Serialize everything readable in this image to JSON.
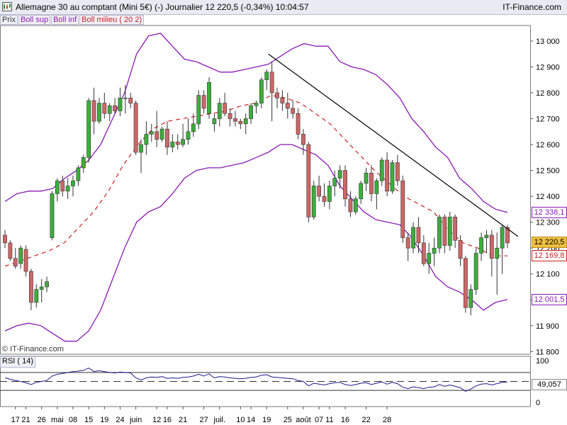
{
  "header": {
    "title": "Allemagne 30 au comptant (Mini 5€) (-)   Journalier   12 220,5 (-0,34%)   10:04:57",
    "brand": "IT-Finance.com"
  },
  "legend": {
    "items": [
      {
        "label": "Prix",
        "color": "#333333"
      },
      {
        "label": "Boll sup",
        "color": "#8a1ab0"
      },
      {
        "label": "Boll inf",
        "color": "#8a1ab0"
      },
      {
        "label": "Boll milieu ( 20 2)",
        "color": "#cc2222"
      }
    ]
  },
  "copyright": "© IT-Finance.com",
  "rsi_label": "RSI ( 14)",
  "price_tags": {
    "boll_sup": "12 338,1",
    "last": "12 220,5",
    "boll_mid": "12 169,8",
    "boll_inf": "12 001,5",
    "rsi": "49,057"
  },
  "colors": {
    "up": "#3cae3c",
    "down": "#cf6666",
    "boll": "#8a1ab0",
    "mid": "#cc2222",
    "trend": "#000000",
    "last_bg": "#f0c040"
  },
  "chart_data": {
    "type": "candlestick",
    "title": "Allemagne 30 au comptant (Mini 5€) (-) Journalier",
    "y_ticks": [
      "13 000",
      "12 900",
      "12 800",
      "12 700",
      "12 600",
      "12 500",
      "12 400",
      "12 300",
      "12 200",
      "12 100",
      "12 000",
      "11 900",
      "11 800"
    ],
    "y_tick_values": [
      13000,
      12900,
      12800,
      12700,
      12600,
      12500,
      12400,
      12300,
      12200,
      12100,
      12000,
      11900,
      11800
    ],
    "ylim": [
      11790,
      13060
    ],
    "x_ticks": [
      "17",
      "21",
      "26",
      "mai",
      "08",
      "15",
      "19",
      "24",
      "juin",
      "12",
      "16",
      "21",
      "27",
      "juil.",
      "10",
      "14",
      "19",
      "25",
      "août",
      "07",
      "11",
      "16",
      "22",
      "28"
    ],
    "x_tick_index": [
      2,
      4,
      7,
      10,
      13,
      16,
      19,
      22,
      25,
      29,
      31,
      34,
      38,
      41,
      45,
      47,
      50,
      54,
      57,
      60,
      62,
      65,
      69,
      73
    ],
    "candles": [
      [
        12250,
        12270,
        12200,
        12220
      ],
      [
        12220,
        12230,
        12150,
        12160
      ],
      [
        12160,
        12200,
        12120,
        12130
      ],
      [
        12140,
        12210,
        12120,
        12200
      ],
      [
        12195,
        12210,
        12090,
        12110
      ],
      [
        12110,
        12120,
        11960,
        11990
      ],
      [
        11990,
        12060,
        11970,
        12040
      ],
      [
        12040,
        12080,
        11990,
        12050
      ],
      [
        12050,
        12090,
        12030,
        12070
      ],
      [
        12240,
        12420,
        12230,
        12410
      ],
      [
        12410,
        12470,
        12380,
        12460
      ],
      [
        12460,
        12480,
        12400,
        12420
      ],
      [
        12420,
        12470,
        12390,
        12440
      ],
      [
        12440,
        12480,
        12400,
        12460
      ],
      [
        12460,
        12520,
        12440,
        12510
      ],
      [
        12510,
        12560,
        12490,
        12550
      ],
      [
        12550,
        12780,
        12530,
        12770
      ],
      [
        12770,
        12820,
        12640,
        12690
      ],
      [
        12690,
        12780,
        12680,
        12760
      ],
      [
        12760,
        12800,
        12700,
        12720
      ],
      [
        12720,
        12760,
        12690,
        12750
      ],
      [
        12750,
        12780,
        12720,
        12730
      ],
      [
        12730,
        12820,
        12710,
        12780
      ],
      [
        12780,
        12830,
        12720,
        12780
      ],
      [
        12780,
        12800,
        12740,
        12760
      ],
      [
        12760,
        12770,
        12560,
        12570
      ],
      [
        12570,
        12620,
        12490,
        12600
      ],
      [
        12600,
        12690,
        12560,
        12640
      ],
      [
        12640,
        12680,
        12610,
        12650
      ],
      [
        12650,
        12730,
        12590,
        12620
      ],
      [
        12620,
        12670,
        12610,
        12660
      ],
      [
        12660,
        12690,
        12560,
        12590
      ],
      [
        12590,
        12640,
        12570,
        12610
      ],
      [
        12610,
        12640,
        12580,
        12600
      ],
      [
        12600,
        12680,
        12590,
        12620
      ],
      [
        12620,
        12700,
        12600,
        12650
      ],
      [
        12650,
        12720,
        12630,
        12680
      ],
      [
        12680,
        12810,
        12660,
        12790
      ],
      [
        12790,
        12810,
        12720,
        12740
      ],
      [
        12720,
        12860,
        12700,
        12840
      ],
      [
        12680,
        12720,
        12650,
        12700
      ],
      [
        12700,
        12780,
        12670,
        12760
      ],
      [
        12760,
        12800,
        12710,
        12720
      ],
      [
        12720,
        12740,
        12670,
        12700
      ],
      [
        12700,
        12730,
        12670,
        12690
      ],
      [
        12690,
        12700,
        12660,
        12680
      ],
      [
        12680,
        12720,
        12640,
        12700
      ],
      [
        12700,
        12760,
        12680,
        12750
      ],
      [
        12750,
        12770,
        12720,
        12760
      ],
      [
        12760,
        12860,
        12740,
        12850
      ],
      [
        12850,
        12890,
        12810,
        12880
      ],
      [
        12880,
        12920,
        12690,
        12800
      ],
      [
        12800,
        12820,
        12740,
        12780
      ],
      [
        12780,
        12810,
        12730,
        12760
      ],
      [
        12760,
        12800,
        12700,
        12740
      ],
      [
        12740,
        12770,
        12700,
        12720
      ],
      [
        12720,
        12740,
        12620,
        12640
      ],
      [
        12640,
        12660,
        12560,
        12600
      ],
      [
        12600,
        12610,
        12300,
        12320
      ],
      [
        12320,
        12460,
        12310,
        12440
      ],
      [
        12440,
        12480,
        12380,
        12400
      ],
      [
        12400,
        12450,
        12360,
        12380
      ],
      [
        12380,
        12460,
        12350,
        12440
      ],
      [
        12440,
        12500,
        12400,
        12470
      ],
      [
        12470,
        12520,
        12430,
        12500
      ],
      [
        12500,
        12520,
        12360,
        12390
      ],
      [
        12390,
        12420,
        12320,
        12340
      ],
      [
        12340,
        12400,
        12330,
        12390
      ],
      [
        12390,
        12460,
        12370,
        12450
      ],
      [
        12450,
        12510,
        12420,
        12490
      ],
      [
        12490,
        12520,
        12380,
        12410
      ],
      [
        12410,
        12470,
        12350,
        12460
      ],
      [
        12460,
        12550,
        12440,
        12540
      ],
      [
        12540,
        12570,
        12400,
        12420
      ],
      [
        12420,
        12540,
        12410,
        12530
      ],
      [
        12530,
        12560,
        12440,
        12460
      ],
      [
        12460,
        12480,
        12220,
        12240
      ],
      [
        12240,
        12260,
        12150,
        12200
      ],
      [
        12200,
        12300,
        12180,
        12280
      ],
      [
        12280,
        12320,
        12180,
        12220
      ],
      [
        12220,
        12250,
        12130,
        12140
      ],
      [
        12140,
        12220,
        12100,
        12180
      ],
      [
        12180,
        12240,
        12130,
        12200
      ],
      [
        12200,
        12330,
        12180,
        12320
      ],
      [
        12320,
        12330,
        12180,
        12210
      ],
      [
        12210,
        12340,
        12190,
        12320
      ],
      [
        12320,
        12330,
        12200,
        12230
      ],
      [
        12230,
        12250,
        12130,
        12160
      ],
      [
        12160,
        12170,
        11950,
        11970
      ],
      [
        11970,
        12060,
        11940,
        12040
      ],
      [
        12040,
        12200,
        12020,
        12180
      ],
      [
        12180,
        12260,
        12150,
        12240
      ],
      [
        12240,
        12270,
        12180,
        12250
      ],
      [
        12250,
        12270,
        12090,
        12160
      ],
      [
        12160,
        12260,
        12020,
        12200
      ],
      [
        12200,
        12290,
        12100,
        12280
      ],
      [
        12280,
        12290,
        12200,
        12220
      ]
    ],
    "series": [
      {
        "name": "Boll sup",
        "values": [
          12380,
          12410,
          12420,
          12420,
          12430,
          12470,
          12500,
          12540,
          12600,
          12700,
          12800,
          12950,
          13020,
          13030,
          12980,
          12930,
          12920,
          12900,
          12880,
          12880,
          12890,
          12900,
          12910,
          12940,
          12970,
          12990,
          12980,
          12980,
          12920,
          12900,
          12890,
          12870,
          12830,
          12780,
          12700,
          12650,
          12590,
          12550,
          12470,
          12430,
          12380,
          12350,
          12338
        ]
      },
      {
        "name": "Boll inf",
        "values": [
          11880,
          11900,
          11910,
          11900,
          11870,
          11840,
          11840,
          11880,
          11960,
          12080,
          12200,
          12300,
          12340,
          12360,
          12410,
          12470,
          12500,
          12510,
          12510,
          12520,
          12530,
          12550,
          12570,
          12600,
          12600,
          12580,
          12560,
          12520,
          12440,
          12390,
          12340,
          12310,
          12300,
          12290,
          12240,
          12170,
          12090,
          12050,
          12030,
          12000,
          11960,
          11990,
          12001
        ]
      },
      {
        "name": "Boll milieu ( 20 2)",
        "values": [
          12130,
          12150,
          12170,
          12190,
          12220,
          12280,
          12340,
          12420,
          12520,
          12600,
          12660,
          12690,
          12700,
          12710,
          12720,
          12730,
          12750,
          12760,
          12790,
          12780,
          12760,
          12720,
          12680,
          12620,
          12560,
          12500,
          12450,
          12400,
          12370,
          12340,
          12270,
          12220,
          12200,
          12170,
          12169.8
        ]
      }
    ],
    "last_price": 12220.5,
    "change_pct": -0.34,
    "rsi": {
      "label": "RSI ( 14)",
      "y_ticks": [
        "100",
        "0"
      ],
      "levels": [
        70,
        30
      ],
      "last": 49.057,
      "values": [
        58,
        55,
        52,
        50,
        47,
        43,
        48,
        50,
        52,
        62,
        66,
        68,
        70,
        72,
        73,
        75,
        80,
        72,
        74,
        72,
        70,
        69,
        71,
        70,
        69,
        58,
        53,
        58,
        60,
        59,
        61,
        57,
        58,
        57,
        59,
        60,
        62,
        66,
        62,
        67,
        58,
        61,
        60,
        58,
        57,
        56,
        57,
        59,
        60,
        64,
        65,
        60,
        59,
        58,
        57,
        56,
        52,
        50,
        40,
        46,
        44,
        42,
        45,
        47,
        48,
        43,
        41,
        43,
        46,
        47,
        43,
        46,
        49,
        44,
        48,
        45,
        37,
        34,
        38,
        36,
        34,
        37,
        38,
        43,
        39,
        42,
        39,
        36,
        28,
        33,
        40,
        44,
        45,
        42,
        45,
        48,
        49
      ]
    }
  }
}
